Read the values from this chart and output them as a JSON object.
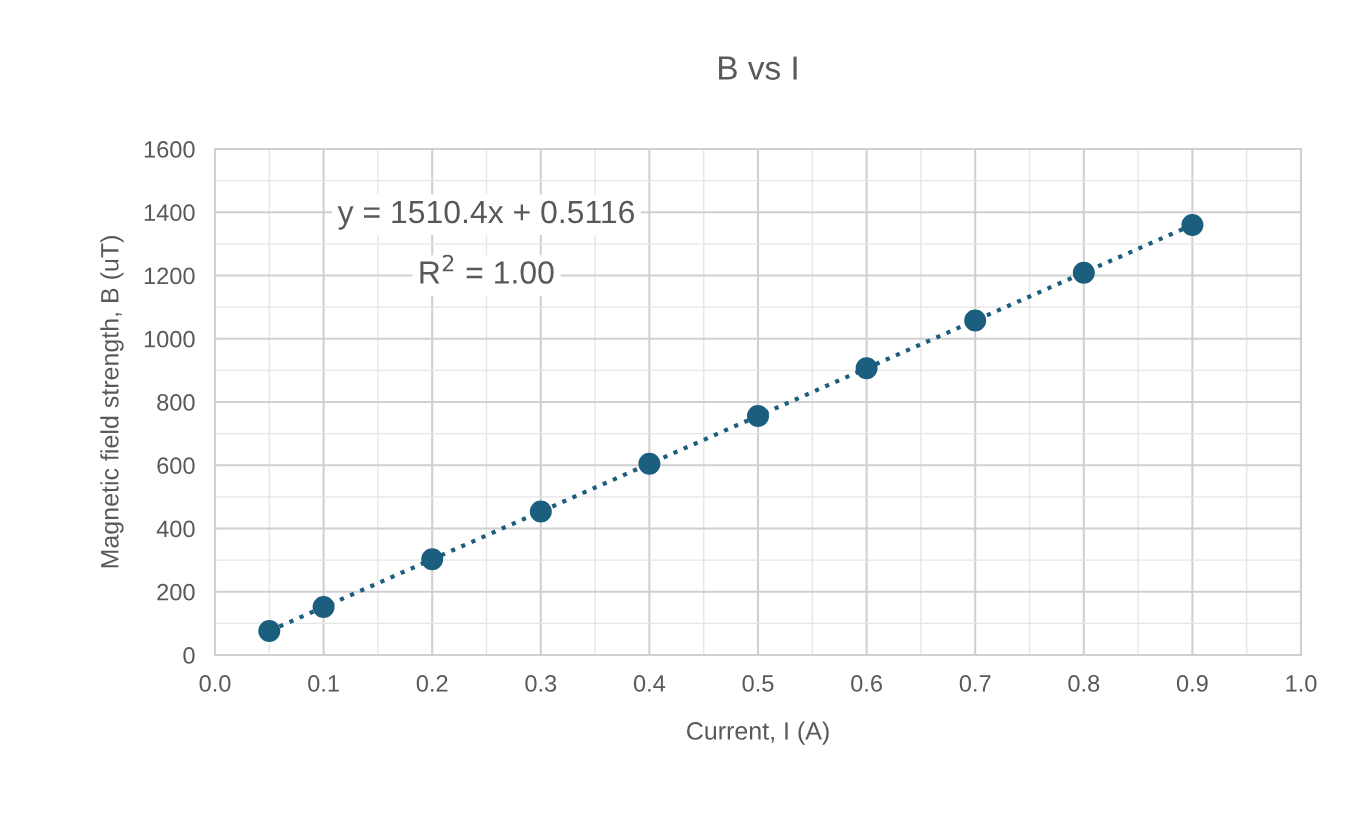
{
  "chart_data": {
    "type": "scatter",
    "title": "B vs I",
    "xlabel": "Current, I (A)",
    "ylabel": "Magnetic field strength, B (uT)",
    "series": [
      {
        "color": "#1b5e7e",
        "marker": "circle",
        "x": [
          0.05,
          0.1,
          0.2,
          0.3,
          0.4,
          0.5,
          0.6,
          0.7,
          0.8,
          0.9
        ],
        "values": [
          76,
          152,
          303,
          454,
          605,
          756,
          907,
          1058,
          1209,
          1360
        ]
      },
      {
        "type": "line",
        "color": "#1b5e7e",
        "line_style": "dotted",
        "marker": "none",
        "x": [
          0.05,
          0.9
        ],
        "values": [
          76,
          1360
        ]
      }
    ],
    "annotations": [
      "y = 1510.4x + 0.5116",
      "R$^{2}$ = 1.00"
    ],
    "xlim": [
      0.0,
      1.0
    ],
    "xticks": [
      {
        "value": 0.0,
        "label": "0.0"
      },
      0.1,
      0.2,
      0.3,
      0.4,
      0.5,
      0.6,
      0.7,
      0.8,
      0.9,
      {
        "value": 1.0,
        "label": "1.0"
      }
    ],
    "ylim": [
      0,
      1600
    ],
    "yticks": [
      0,
      200,
      400,
      600,
      800,
      1000,
      1200,
      1400,
      1600
    ],
    "grid": true
  }
}
